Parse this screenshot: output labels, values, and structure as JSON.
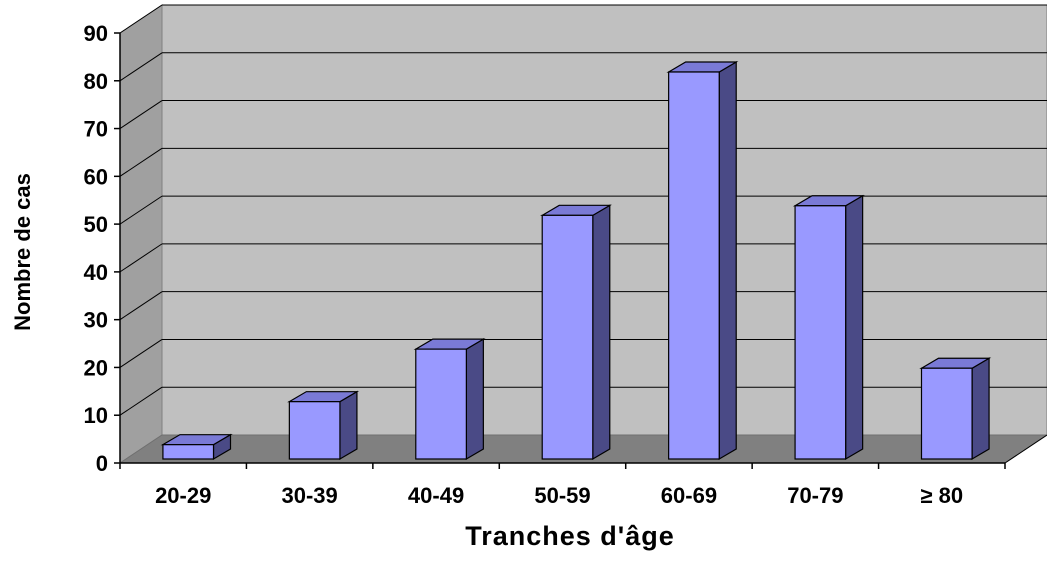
{
  "chart_data": {
    "type": "bar",
    "categories": [
      "20-29",
      "30-39",
      "40-49",
      "50-59",
      "60-69",
      "70-79",
      "≥ 80"
    ],
    "values": [
      3,
      12,
      23,
      51,
      81,
      53,
      19
    ],
    "xlabel": "Tranches d'âge",
    "ylabel": "Nombre de cas",
    "ylim": [
      0,
      90
    ],
    "yticks": [
      0,
      10,
      20,
      30,
      40,
      50,
      60,
      70,
      80,
      90
    ],
    "grid": true,
    "style": "3d-column",
    "colors": {
      "bar_front": "#9999FF",
      "bar_side": "#4A4A86",
      "bar_top": "#7A7AD6",
      "back_wall": "#C0C0C0",
      "side_wall": "#A0A0A0",
      "floor": "#808080"
    }
  }
}
